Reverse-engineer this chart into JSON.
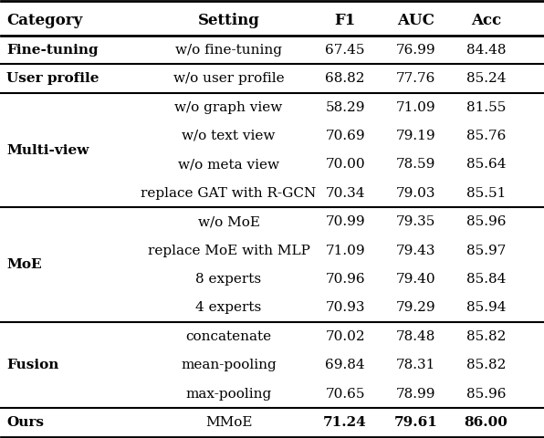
{
  "headers": [
    "Category",
    "Setting",
    "F1",
    "AUC",
    "Acc"
  ],
  "rows": [
    {
      "category": "Fine-tuning",
      "category_bold": true,
      "setting": "w/o fine-tuning",
      "f1": "67.45",
      "auc": "76.99",
      "acc": "84.48",
      "bold_values": false,
      "separator_after": true
    },
    {
      "category": "User profile",
      "category_bold": true,
      "setting": "w/o user profile",
      "f1": "68.82",
      "auc": "77.76",
      "acc": "85.24",
      "bold_values": false,
      "separator_after": true
    },
    {
      "category": "Multi-view",
      "category_bold": true,
      "setting": "w/o graph view",
      "f1": "58.29",
      "auc": "71.09",
      "acc": "81.55",
      "bold_values": false,
      "separator_after": false
    },
    {
      "category": "",
      "category_bold": false,
      "setting": "w/o text view",
      "f1": "70.69",
      "auc": "79.19",
      "acc": "85.76",
      "bold_values": false,
      "separator_after": false
    },
    {
      "category": "",
      "category_bold": false,
      "setting": "w/o meta view",
      "f1": "70.00",
      "auc": "78.59",
      "acc": "85.64",
      "bold_values": false,
      "separator_after": false
    },
    {
      "category": "",
      "category_bold": false,
      "setting": "replace GAT with R-GCN",
      "f1": "70.34",
      "auc": "79.03",
      "acc": "85.51",
      "bold_values": false,
      "separator_after": true
    },
    {
      "category": "MoE",
      "category_bold": true,
      "setting": "w/o MoE",
      "f1": "70.99",
      "auc": "79.35",
      "acc": "85.96",
      "bold_values": false,
      "separator_after": false
    },
    {
      "category": "",
      "category_bold": false,
      "setting": "replace MoE with MLP",
      "f1": "71.09",
      "auc": "79.43",
      "acc": "85.97",
      "bold_values": false,
      "separator_after": false
    },
    {
      "category": "",
      "category_bold": false,
      "setting": "8 experts",
      "f1": "70.96",
      "auc": "79.40",
      "acc": "85.84",
      "bold_values": false,
      "separator_after": false
    },
    {
      "category": "",
      "category_bold": false,
      "setting": "4 experts",
      "f1": "70.93",
      "auc": "79.29",
      "acc": "85.94",
      "bold_values": false,
      "separator_after": true
    },
    {
      "category": "Fusion",
      "category_bold": true,
      "setting": "concatenate",
      "f1": "70.02",
      "auc": "78.48",
      "acc": "85.82",
      "bold_values": false,
      "separator_after": false
    },
    {
      "category": "",
      "category_bold": false,
      "setting": "mean-pooling",
      "f1": "69.84",
      "auc": "78.31",
      "acc": "85.82",
      "bold_values": false,
      "separator_after": false
    },
    {
      "category": "",
      "category_bold": false,
      "setting": "max-pooling",
      "f1": "70.65",
      "auc": "78.99",
      "acc": "85.96",
      "bold_values": false,
      "separator_after": true
    },
    {
      "category": "Ours",
      "category_bold": true,
      "setting": "MMoE",
      "f1": "71.24",
      "auc": "79.61",
      "acc": "86.00",
      "bold_values": true,
      "separator_after": false
    }
  ],
  "figsize": [
    5.96,
    4.8
  ],
  "dpi": 100,
  "background_color": "#ffffff",
  "font_size": 11.0,
  "header_font_size": 12.0
}
